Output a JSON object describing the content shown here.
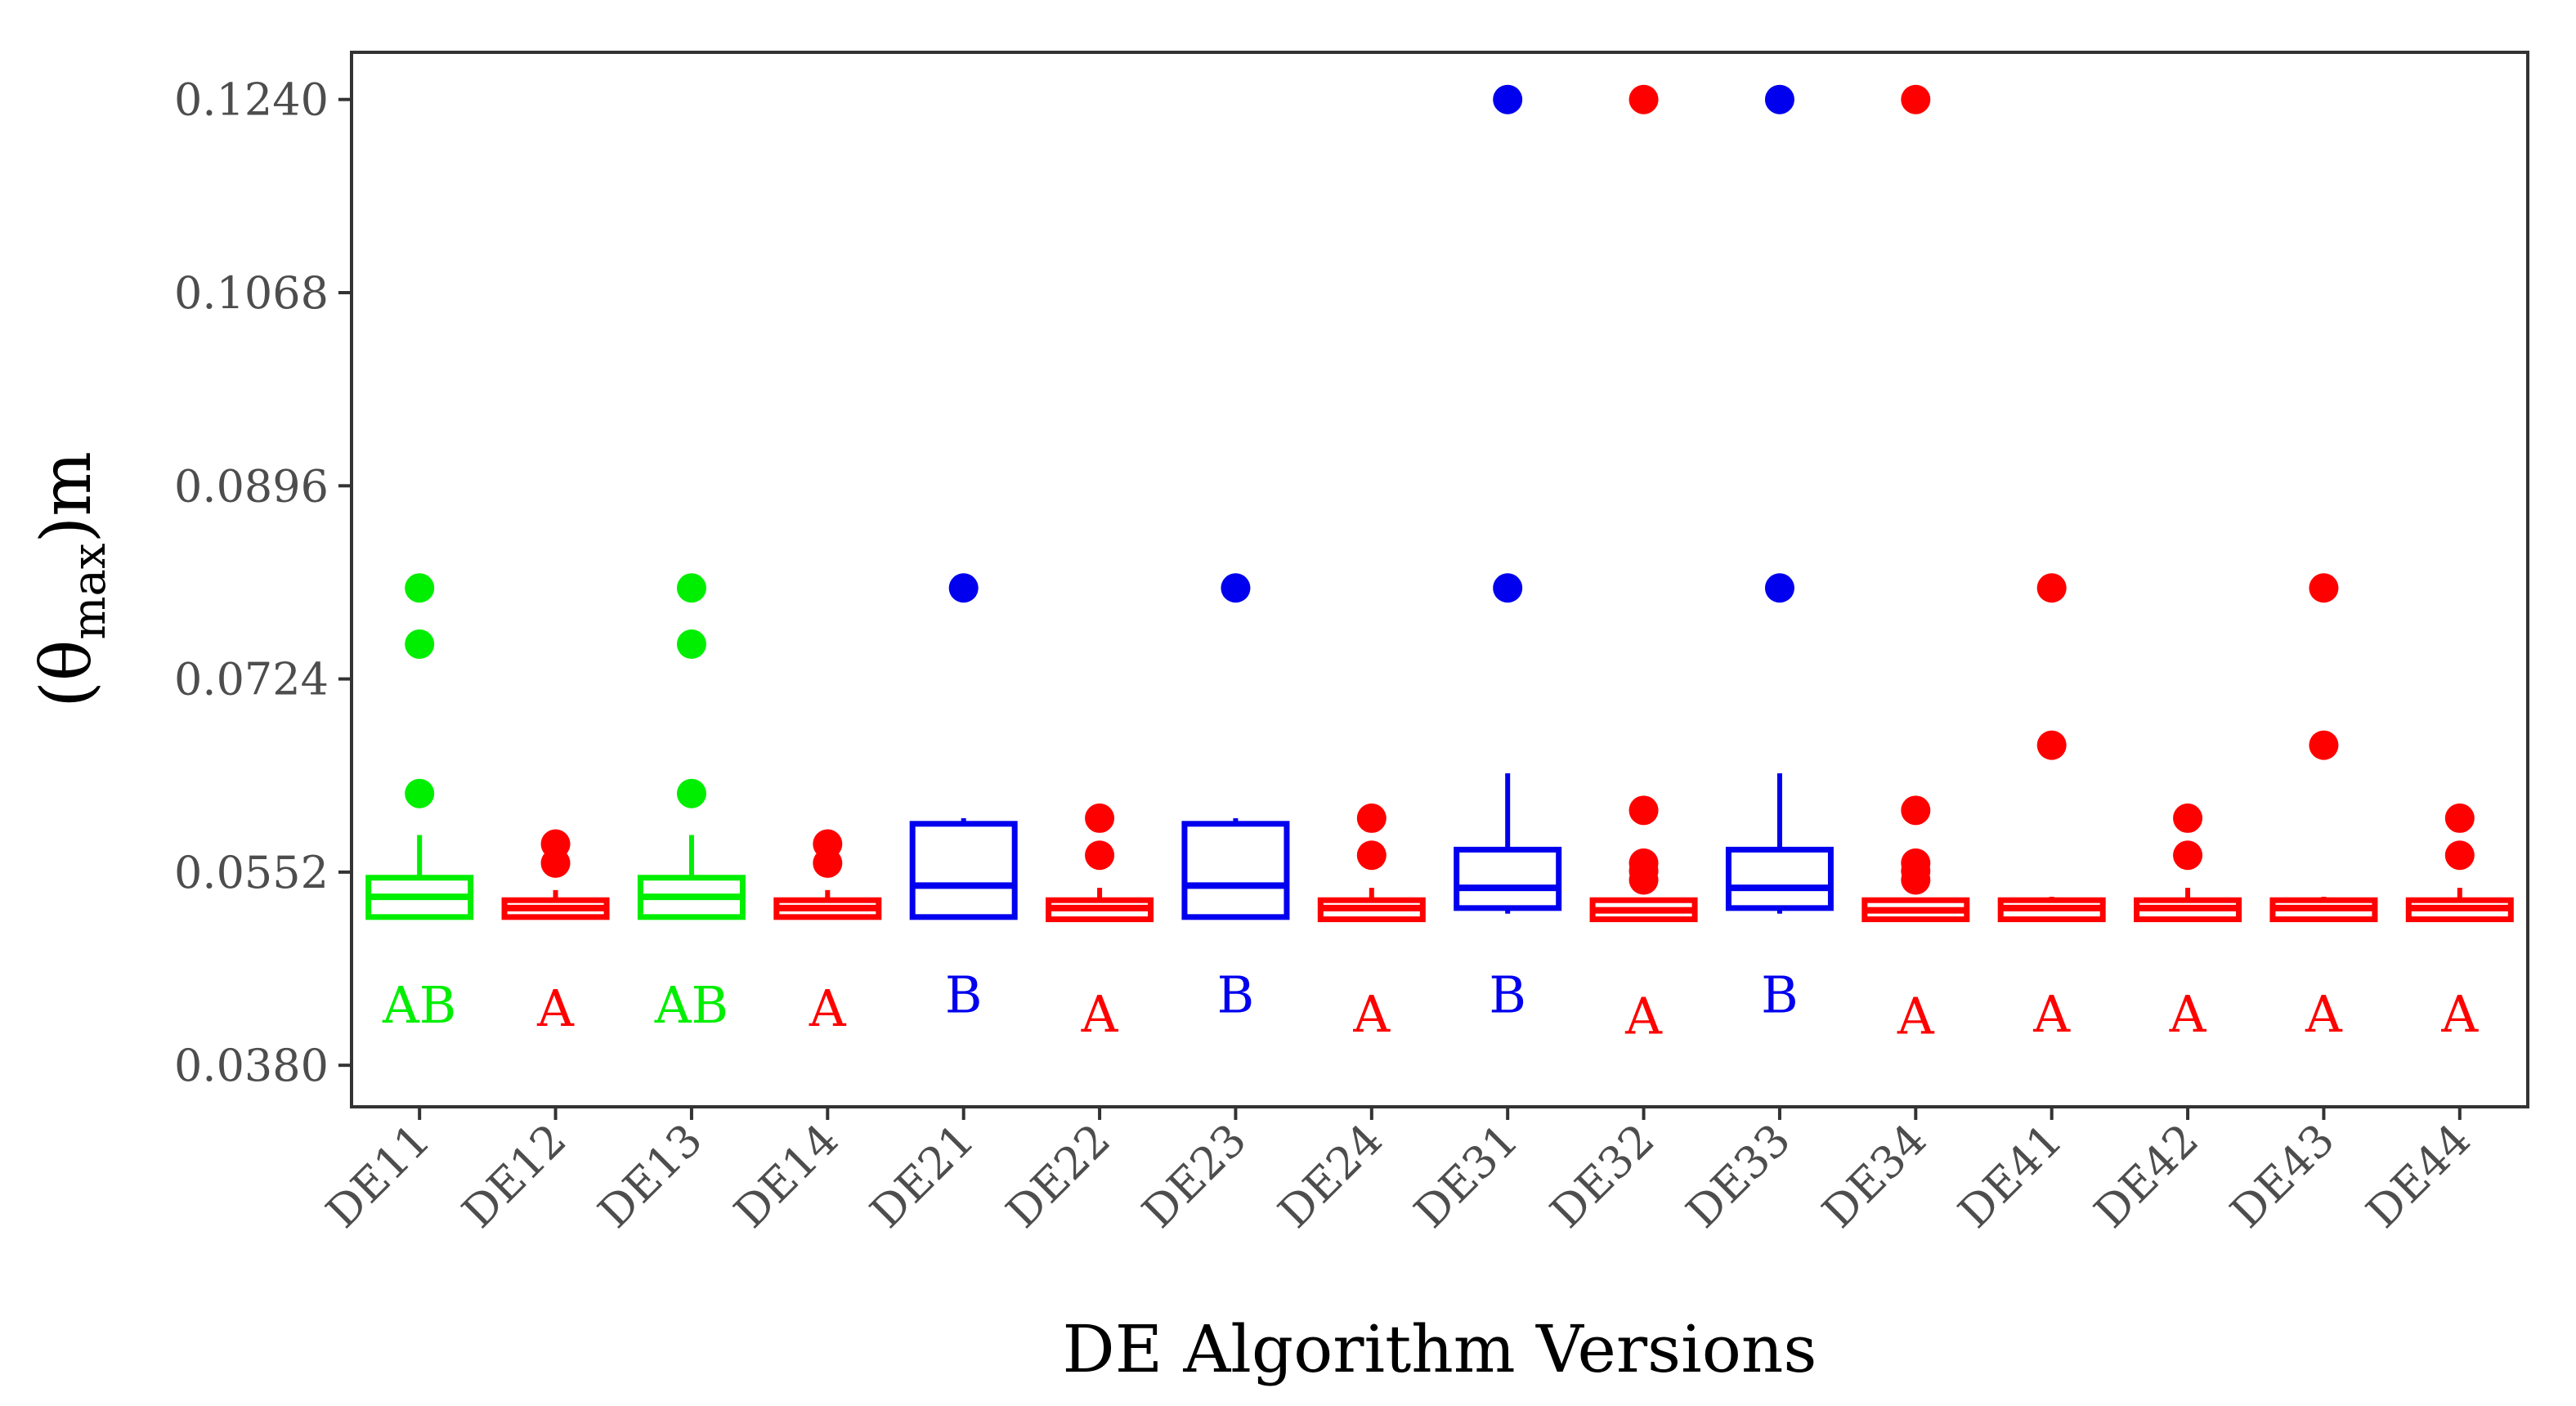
{
  "chart_data": {
    "type": "boxplot",
    "title": "",
    "xlabel": "DE Algorithm Versions",
    "ylabel": {
      "base": "(θ",
      "subscript": "max",
      "suffix": ")m"
    },
    "ylim": [
      0.0343,
      0.1282
    ],
    "yticks": [
      0.038,
      0.0552,
      0.0724,
      0.0896,
      0.1068,
      0.124
    ],
    "ytick_labels": [
      "0.0380",
      "0.0552",
      "0.0724",
      "0.0896",
      "0.1068",
      "0.1240"
    ],
    "grid": false,
    "legend": "none",
    "colors": {
      "A": "#ff0000",
      "AB": "#00ee00",
      "B": "#0000ee"
    },
    "categories": [
      "DE11",
      "DE12",
      "DE13",
      "DE14",
      "DE21",
      "DE22",
      "DE23",
      "DE24",
      "DE31",
      "DE32",
      "DE33",
      "DE34",
      "DE41",
      "DE42",
      "DE43",
      "DE44"
    ],
    "boxes": [
      {
        "category": "DE11",
        "group": "AB",
        "min": 0.0512,
        "q1": 0.0512,
        "median": 0.053,
        "q3": 0.0547,
        "max": 0.0585,
        "outliers": [
          0.0622,
          0.0755,
          0.0805
        ],
        "letter_y": 0.0418
      },
      {
        "category": "DE12",
        "group": "A",
        "min": 0.0512,
        "q1": 0.0512,
        "median": 0.052,
        "q3": 0.0527,
        "max": 0.0536,
        "outliers": [
          0.056,
          0.0577
        ],
        "letter_y": 0.0415
      },
      {
        "category": "DE13",
        "group": "AB",
        "min": 0.0512,
        "q1": 0.0512,
        "median": 0.053,
        "q3": 0.0547,
        "max": 0.0585,
        "outliers": [
          0.0622,
          0.0755,
          0.0805
        ],
        "letter_y": 0.0418
      },
      {
        "category": "DE14",
        "group": "A",
        "min": 0.0512,
        "q1": 0.0512,
        "median": 0.052,
        "q3": 0.0527,
        "max": 0.0536,
        "outliers": [
          0.056,
          0.0577
        ],
        "letter_y": 0.0415
      },
      {
        "category": "DE21",
        "group": "B",
        "min": 0.0512,
        "q1": 0.0512,
        "median": 0.054,
        "q3": 0.0595,
        "max": 0.06,
        "outliers": [
          0.0805
        ],
        "letter_y": 0.0427
      },
      {
        "category": "DE22",
        "group": "A",
        "min": 0.051,
        "q1": 0.051,
        "median": 0.052,
        "q3": 0.0527,
        "max": 0.0538,
        "outliers": [
          0.0567,
          0.06
        ],
        "letter_y": 0.041
      },
      {
        "category": "DE23",
        "group": "B",
        "min": 0.0512,
        "q1": 0.0512,
        "median": 0.054,
        "q3": 0.0595,
        "max": 0.06,
        "outliers": [
          0.0805
        ],
        "letter_y": 0.0427
      },
      {
        "category": "DE24",
        "group": "A",
        "min": 0.051,
        "q1": 0.051,
        "median": 0.052,
        "q3": 0.0527,
        "max": 0.0538,
        "outliers": [
          0.0567,
          0.06
        ],
        "letter_y": 0.041
      },
      {
        "category": "DE31",
        "group": "B",
        "min": 0.0515,
        "q1": 0.052,
        "median": 0.0538,
        "q3": 0.0572,
        "max": 0.064,
        "outliers": [
          0.0805,
          0.124
        ],
        "letter_y": 0.0427
      },
      {
        "category": "DE32",
        "group": "A",
        "min": 0.051,
        "q1": 0.051,
        "median": 0.0518,
        "q3": 0.0527,
        "max": 0.0527,
        "outliers": [
          0.0545,
          0.0553,
          0.056,
          0.0607,
          0.124
        ],
        "letter_y": 0.0408
      },
      {
        "category": "DE33",
        "group": "B",
        "min": 0.0515,
        "q1": 0.052,
        "median": 0.0538,
        "q3": 0.0572,
        "max": 0.064,
        "outliers": [
          0.0805,
          0.124
        ],
        "letter_y": 0.0427
      },
      {
        "category": "DE34",
        "group": "A",
        "min": 0.051,
        "q1": 0.051,
        "median": 0.0518,
        "q3": 0.0527,
        "max": 0.0527,
        "outliers": [
          0.0545,
          0.0553,
          0.056,
          0.0607,
          0.124
        ],
        "letter_y": 0.0408
      },
      {
        "category": "DE41",
        "group": "A",
        "min": 0.051,
        "q1": 0.051,
        "median": 0.052,
        "q3": 0.0527,
        "max": 0.053,
        "outliers": [
          0.0665,
          0.0805
        ],
        "letter_y": 0.041
      },
      {
        "category": "DE42",
        "group": "A",
        "min": 0.051,
        "q1": 0.051,
        "median": 0.052,
        "q3": 0.0527,
        "max": 0.0538,
        "outliers": [
          0.0567,
          0.06
        ],
        "letter_y": 0.041
      },
      {
        "category": "DE43",
        "group": "A",
        "min": 0.051,
        "q1": 0.051,
        "median": 0.052,
        "q3": 0.0527,
        "max": 0.053,
        "outliers": [
          0.0665,
          0.0805
        ],
        "letter_y": 0.041
      },
      {
        "category": "DE44",
        "group": "A",
        "min": 0.051,
        "q1": 0.051,
        "median": 0.052,
        "q3": 0.0527,
        "max": 0.0538,
        "outliers": [
          0.0567,
          0.06
        ],
        "letter_y": 0.041
      }
    ]
  }
}
